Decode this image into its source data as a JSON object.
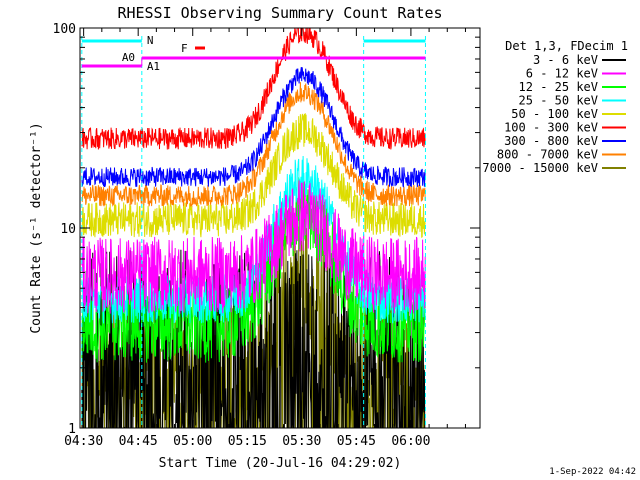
{
  "chart_data": {
    "type": "line",
    "title": "RHESSI Observing Summary Count Rates",
    "xlabel": "Start Time (20-Jul-16 04:29:02)",
    "ylabel": "Count Rate (s⁻¹ detector⁻¹)",
    "yscale": "log",
    "ylim": [
      1,
      100
    ],
    "xlim_minutes": [
      0,
      110
    ],
    "x_ticks": [
      "04:30",
      "04:45",
      "05:00",
      "05:15",
      "05:30",
      "05:45",
      "06:00"
    ],
    "x_tick_minutes": [
      1,
      16,
      31,
      46,
      61,
      76,
      91
    ],
    "y_tick_labels": [
      "1",
      "10",
      "100"
    ],
    "y_tick_values": [
      1,
      10,
      100
    ],
    "legend_title": "Det 1,3, FDecim 1",
    "footer": "1-Sep-2022 04:42",
    "annotations": {
      "N": {
        "label": "N",
        "color": "#00ffff"
      },
      "F": {
        "label": "F",
        "color": "#ff0000"
      },
      "A0": {
        "label": "A0",
        "color": "#ff00ff"
      },
      "A1": {
        "label": "A1",
        "color": "#ff00ff"
      }
    },
    "series": [
      {
        "name": "3 - 6 keV",
        "color": "#000000",
        "baseline": 2.6,
        "noise": 0.9,
        "peak": 0.0,
        "sparse": true
      },
      {
        "name": "6 - 12 keV",
        "color": "#ff00ff",
        "baseline": 5.8,
        "noise": 0.35,
        "peak": 1.0,
        "sparse": false
      },
      {
        "name": "12 - 25 keV",
        "color": "#00ff00",
        "baseline": 3.3,
        "noise": 0.35,
        "peak": 2.6,
        "sparse": false
      },
      {
        "name": "25 - 50 keV",
        "color": "#00ffff",
        "baseline": 4.4,
        "noise": 0.22,
        "peak": 3.0,
        "sparse": false
      },
      {
        "name": "50 - 100 keV",
        "color": "#dddd00",
        "baseline": 11.0,
        "noise": 0.16,
        "peak": 1.8,
        "sparse": false
      },
      {
        "name": "100 - 300 keV",
        "color": "#ff0000",
        "baseline": 28.0,
        "noise": 0.1,
        "peak": 2.4,
        "sparse": false
      },
      {
        "name": "300 - 800 keV",
        "color": "#0000ff",
        "baseline": 18.0,
        "noise": 0.09,
        "peak": 2.2,
        "sparse": false
      },
      {
        "name": "800 - 7000 keV",
        "color": "#ff8000",
        "baseline": 14.5,
        "noise": 0.1,
        "peak": 2.3,
        "sparse": false
      },
      {
        "name": "7000 - 15000 keV",
        "color": "#808000",
        "baseline": 2.2,
        "noise": 0.55,
        "peak": 1.6,
        "sparse": true
      }
    ]
  }
}
